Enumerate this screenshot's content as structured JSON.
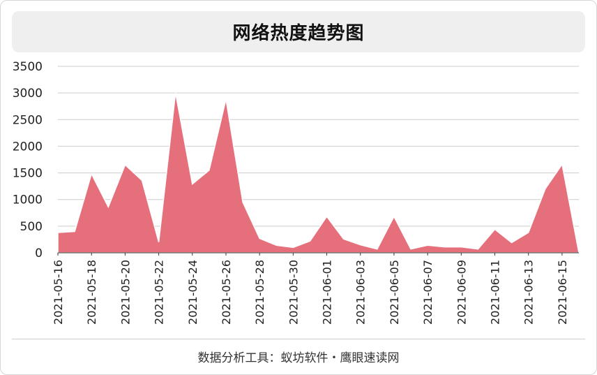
{
  "title": "网络热度趋势图",
  "footer": "数据分析工具：蚁坊软件・鹰眼速读网",
  "chart_data": {
    "type": "area",
    "color": "#e5707c",
    "x": [
      "2021-05-16",
      "2021-05-17",
      "2021-05-18",
      "2021-05-19",
      "2021-05-20",
      "2021-05-21",
      "2021-05-22",
      "2021-05-23",
      "2021-05-24",
      "2021-05-25",
      "2021-05-26",
      "2021-05-27",
      "2021-05-28",
      "2021-05-29",
      "2021-05-30",
      "2021-05-31",
      "2021-06-01",
      "2021-06-02",
      "2021-06-03",
      "2021-06-04",
      "2021-06-05",
      "2021-06-06",
      "2021-06-07",
      "2021-06-08",
      "2021-06-09",
      "2021-06-10",
      "2021-06-11",
      "2021-06-12",
      "2021-06-13",
      "2021-06-14",
      "2021-06-15",
      "2021-06-16"
    ],
    "values": [
      380,
      400,
      1480,
      860,
      1650,
      1360,
      200,
      3000,
      1290,
      1550,
      2880,
      950,
      270,
      140,
      100,
      220,
      680,
      260,
      150,
      70,
      680,
      70,
      140,
      110,
      110,
      70,
      440,
      190,
      380,
      1200,
      1660,
      0
    ],
    "xtick_labels": [
      "2021-05-16",
      "2021-05-18",
      "2021-05-20",
      "2021-05-22",
      "2021-05-24",
      "2021-05-26",
      "2021-05-28",
      "2021-05-30",
      "2021-06-01",
      "2021-06-03",
      "2021-06-05",
      "2021-06-07",
      "2021-06-09",
      "2021-06-11",
      "2021-06-13",
      "2021-06-15"
    ],
    "yticks": [
      0,
      500,
      1000,
      1500,
      2000,
      2500,
      3000,
      3500
    ],
    "ylim": [
      0,
      3500
    ],
    "grid": true
  }
}
